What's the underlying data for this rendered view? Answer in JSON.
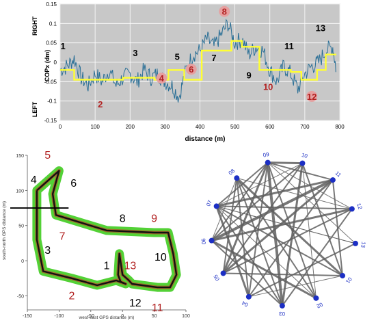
{
  "chart_data": [
    {
      "type": "line",
      "title": "",
      "xlabel": "distance (m)",
      "ylabel": "COPx (dm)",
      "side_label_top": "RIGHT",
      "side_label_bottom": "LEFT",
      "xlim": [
        0,
        800
      ],
      "ylim": [
        -0.15,
        0.15
      ],
      "x_ticks": [
        0,
        100,
        200,
        300,
        400,
        500,
        600,
        700,
        800
      ],
      "y_ticks": [
        0.15,
        0.1,
        0.05,
        0,
        -0.05,
        -0.1,
        -0.15
      ],
      "y_tick_labels": [
        "0.15",
        "0.1",
        "0.05",
        "0",
        "-0.05",
        "-0.1",
        "-0.15"
      ],
      "grid": true,
      "colors": {
        "signal": "#2a6f96",
        "step": "#ffff33",
        "odd_label": "#000000",
        "even_label": "#b22222",
        "badge": "#e6a0a0",
        "plot_bg": "#c8c8c8"
      },
      "series": [
        {
          "x": [
            0,
            20,
            40,
            60,
            80,
            100,
            120,
            140,
            160,
            180,
            200,
            220,
            240,
            260,
            280,
            300,
            320,
            340,
            360,
            380,
            400,
            420,
            440,
            460,
            480,
            500,
            520,
            540,
            560,
            580,
            600,
            620,
            640,
            660,
            680,
            700,
            720,
            740,
            760,
            780,
            790
          ],
          "y": [
            -0.02,
            -0.01,
            0.01,
            -0.04,
            -0.06,
            -0.03,
            -0.05,
            -0.02,
            -0.06,
            -0.04,
            -0.03,
            -0.05,
            -0.02,
            -0.04,
            -0.03,
            -0.05,
            -0.06,
            -0.09,
            -0.02,
            0.02,
            0.03,
            0.06,
            0.04,
            0.07,
            0.1,
            0.05,
            0.06,
            0.02,
            0.04,
            0.03,
            -0.02,
            -0.05,
            -0.01,
            -0.03,
            -0.07,
            -0.03,
            -0.01,
            0.0,
            0.03,
            0.04,
            -0.02
          ]
        },
        {
          "step": true,
          "x": [
            0,
            40,
            40,
            180,
            180,
            270,
            270,
            310,
            310,
            355,
            355,
            405,
            405,
            490,
            490,
            520,
            520,
            570,
            570,
            660,
            660,
            690,
            690,
            735,
            735,
            760,
            760,
            790
          ],
          "y": [
            -0.02,
            -0.02,
            -0.045,
            -0.045,
            -0.04,
            -0.04,
            -0.045,
            -0.045,
            -0.02,
            -0.02,
            -0.045,
            -0.045,
            0.03,
            0.03,
            0.055,
            0.055,
            0.04,
            0.04,
            -0.02,
            -0.02,
            -0.025,
            -0.025,
            -0.045,
            -0.045,
            -0.02,
            -0.02,
            0.02,
            0.02
          ]
        }
      ],
      "annotations": [
        {
          "text": "1",
          "x": 8,
          "y": 0.035,
          "style": "odd"
        },
        {
          "text": "2",
          "x": 115,
          "y": -0.115,
          "style": "even"
        },
        {
          "text": "3",
          "x": 215,
          "y": 0.018,
          "style": "odd"
        },
        {
          "text": "4",
          "x": 290,
          "y": -0.048,
          "style": "even-badge"
        },
        {
          "text": "5",
          "x": 335,
          "y": 0.008,
          "style": "odd"
        },
        {
          "text": "6",
          "x": 375,
          "y": -0.025,
          "style": "even-badge"
        },
        {
          "text": "7",
          "x": 440,
          "y": 0.005,
          "style": "odd"
        },
        {
          "text": "8",
          "x": 470,
          "y": 0.124,
          "style": "even-badge"
        },
        {
          "text": "9",
          "x": 540,
          "y": -0.04,
          "style": "odd"
        },
        {
          "text": "10",
          "x": 595,
          "y": -0.07,
          "style": "even"
        },
        {
          "text": "11",
          "x": 655,
          "y": 0.035,
          "style": "odd"
        },
        {
          "text": "12",
          "x": 720,
          "y": -0.095,
          "style": "even-badge"
        },
        {
          "text": "13",
          "x": 745,
          "y": 0.082,
          "style": "odd"
        }
      ]
    },
    {
      "type": "scatter",
      "title": "",
      "xlabel": "west-east GPS distance (m)",
      "ylabel": "south-north GPS distance (m)",
      "xlim": [
        -150,
        100
      ],
      "ylim": [
        -70,
        150
      ],
      "x_ticks": [
        -150,
        -100,
        -50,
        0,
        50,
        100
      ],
      "y_ticks": [
        150,
        100,
        50,
        0,
        -50
      ],
      "path": {
        "x": [
          -135,
          -100,
          -110,
          -105,
          -25,
          50,
          72,
          80,
          85,
          75,
          55,
          15,
          10,
          0,
          -5,
          -7,
          -3,
          5,
          -10,
          -40,
          -80,
          -125,
          -135,
          -135
        ],
        "y": [
          100,
          128,
          95,
          65,
          43,
          40,
          40,
          10,
          -20,
          -38,
          -38,
          -33,
          -28,
          -20,
          10,
          -20,
          -30,
          -33,
          -28,
          -35,
          -25,
          -15,
          30,
          100
        ]
      },
      "divider": {
        "x1": -150,
        "x2": -85,
        "y": 75
      },
      "colors": {
        "track": "#111111",
        "halo": "#40cc20",
        "segment": "#b0522a",
        "odd_label": "#000000",
        "even_label": "#b22222"
      },
      "annotations": [
        {
          "text": "4",
          "x": -140,
          "y": 110,
          "style": "odd"
        },
        {
          "text": "5",
          "x": -118,
          "y": 145,
          "style": "even"
        },
        {
          "text": "6",
          "x": -77,
          "y": 105,
          "style": "odd"
        },
        {
          "text": "7",
          "x": -95,
          "y": 30,
          "style": "even"
        },
        {
          "text": "8",
          "x": 0,
          "y": 55,
          "style": "odd"
        },
        {
          "text": "9",
          "x": 50,
          "y": 55,
          "style": "even"
        },
        {
          "text": "3",
          "x": -118,
          "y": 10,
          "style": "odd"
        },
        {
          "text": "10",
          "x": 60,
          "y": 0,
          "style": "odd"
        },
        {
          "text": "1",
          "x": -25,
          "y": -12,
          "style": "odd"
        },
        {
          "text": "13",
          "x": 12,
          "y": -12,
          "style": "even"
        },
        {
          "text": "2",
          "x": -80,
          "y": -55,
          "style": "even"
        },
        {
          "text": "12",
          "x": 20,
          "y": -65,
          "style": "odd"
        },
        {
          "text": "11",
          "x": 55,
          "y": -72,
          "style": "even"
        }
      ]
    },
    {
      "type": "network",
      "nodes": [
        "10",
        "11",
        "12",
        "13",
        "01",
        "02",
        "03",
        "04",
        "05",
        "06",
        "07",
        "08",
        "09"
      ],
      "edges": [
        [
          0,
          4,
          2
        ],
        [
          0,
          5,
          1
        ],
        [
          0,
          9,
          2
        ],
        [
          0,
          10,
          1
        ],
        [
          0,
          12,
          3
        ],
        [
          1,
          4,
          2
        ],
        [
          1,
          9,
          4
        ],
        [
          1,
          10,
          3
        ],
        [
          1,
          12,
          2
        ],
        [
          1,
          7,
          2
        ],
        [
          1,
          8,
          3
        ],
        [
          2,
          6,
          2
        ],
        [
          2,
          9,
          3
        ],
        [
          2,
          10,
          2
        ],
        [
          2,
          12,
          1
        ],
        [
          2,
          8,
          2
        ],
        [
          3,
          10,
          1
        ],
        [
          3,
          12,
          1
        ],
        [
          3,
          7,
          2
        ],
        [
          4,
          10,
          2
        ],
        [
          4,
          11,
          3
        ],
        [
          4,
          8,
          2
        ],
        [
          4,
          7,
          1
        ],
        [
          5,
          10,
          1
        ],
        [
          5,
          12,
          2
        ],
        [
          5,
          11,
          2
        ],
        [
          5,
          9,
          3
        ],
        [
          6,
          10,
          2
        ],
        [
          6,
          12,
          4
        ],
        [
          6,
          11,
          2
        ],
        [
          6,
          9,
          2
        ],
        [
          6,
          0,
          3
        ],
        [
          7,
          11,
          2
        ],
        [
          7,
          10,
          3
        ],
        [
          7,
          12,
          2
        ],
        [
          8,
          11,
          2
        ],
        [
          8,
          12,
          3
        ],
        [
          8,
          0,
          2
        ],
        [
          9,
          11,
          1
        ],
        [
          9,
          12,
          2
        ],
        [
          10,
          12,
          2
        ],
        [
          10,
          3,
          1
        ],
        [
          11,
          2,
          1
        ]
      ],
      "colors": {
        "node": "#1c2fc4",
        "edge": "#606060",
        "label": "#1c2fc4"
      }
    }
  ]
}
